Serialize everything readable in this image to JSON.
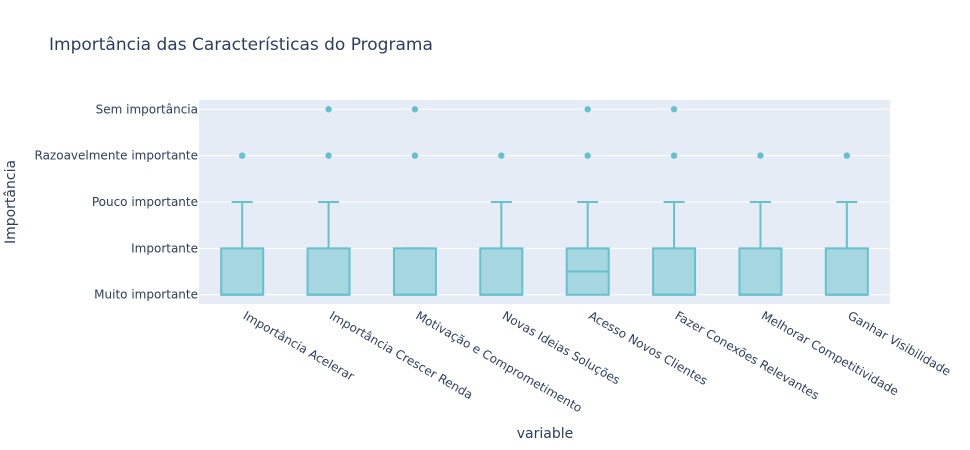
{
  "chart_data": {
    "type": "box",
    "title": "Importância das Características do Programa",
    "xlabel": "variable",
    "ylabel": "Importância",
    "y_categories": [
      "Muito importante",
      "Importante",
      "Pouco importante",
      "Razoavelmente importante",
      "Sem importância"
    ],
    "categories": [
      "Importância Acelerar",
      "Importância Crescer Renda",
      "Motivação e Comprometimento",
      "Novas Ideias Soluções",
      "Acesso Novos Clientes",
      "Fazer Conexões Relevantes",
      "Melhorar Competitividade",
      "Ganhar Visibilidade"
    ],
    "boxes": [
      {
        "q1": 0,
        "median": 0,
        "q3": 1,
        "lower": 0,
        "upper": 2,
        "outliers": [
          3
        ]
      },
      {
        "q1": 0,
        "median": 0,
        "q3": 1,
        "lower": 0,
        "upper": 2,
        "outliers": [
          3,
          4
        ]
      },
      {
        "q1": 0,
        "median": 0,
        "q3": 1,
        "lower": 0,
        "upper": 1,
        "outliers": [
          3,
          4
        ]
      },
      {
        "q1": 0,
        "median": 0,
        "q3": 1,
        "lower": 0,
        "upper": 2,
        "outliers": [
          3
        ]
      },
      {
        "q1": 0,
        "median": 0.5,
        "q3": 1,
        "lower": 0,
        "upper": 2,
        "outliers": [
          3,
          4
        ]
      },
      {
        "q1": 0,
        "median": 0,
        "q3": 1,
        "lower": 0,
        "upper": 2,
        "outliers": [
          3,
          4
        ]
      },
      {
        "q1": 0,
        "median": 0,
        "q3": 1,
        "lower": 0,
        "upper": 2,
        "outliers": [
          3
        ]
      },
      {
        "q1": 0,
        "median": 0,
        "q3": 1,
        "lower": 0,
        "upper": 2,
        "outliers": [
          3
        ]
      }
    ],
    "ylim": [
      -0.2,
      4.2
    ],
    "grid": true,
    "colors": {
      "plot_bg": "#e5ecf6",
      "box_fill": "#a6d7e1",
      "box_line": "#65c1cb",
      "text": "#2a3f5f",
      "grid": "#ffffff"
    }
  }
}
